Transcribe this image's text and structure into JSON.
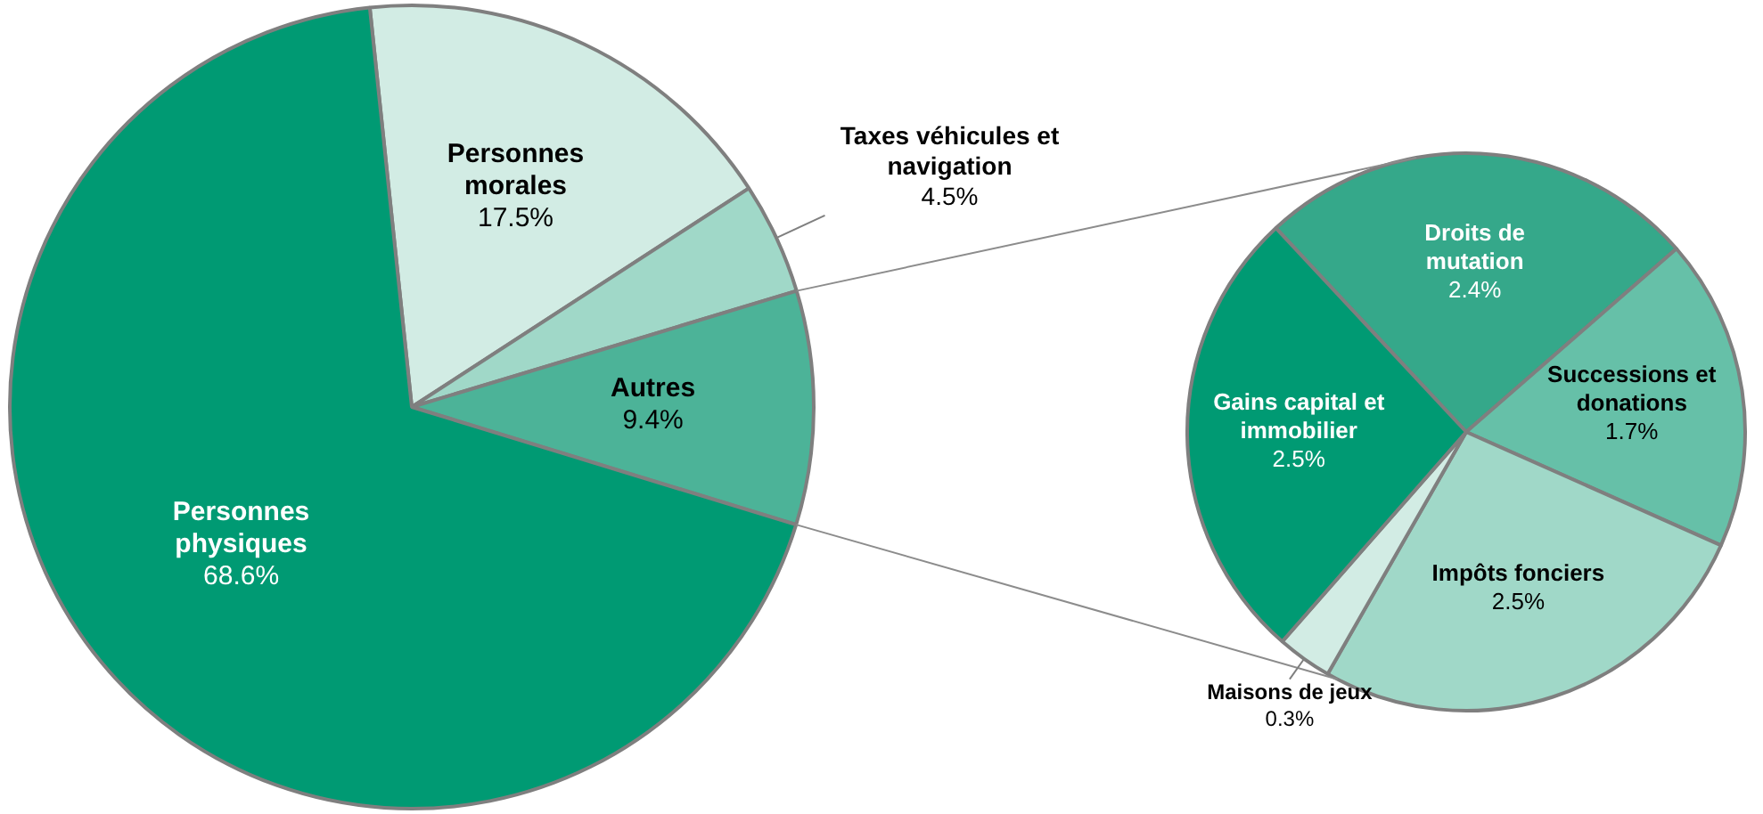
{
  "chart_data": [
    {
      "type": "pie",
      "categories": [
        "Personnes morales",
        "Taxes véhicules et navigation",
        "Autres",
        "Personnes physiques"
      ],
      "values": [
        17.5,
        4.5,
        9.4,
        68.6
      ],
      "colors": [
        "#d2ece4",
        "#a0d8c8",
        "#4cb398",
        "#009a73"
      ],
      "value_labels": [
        "17.5%",
        "4.5%",
        "9.4%",
        "68.6%"
      ],
      "legend": false
    },
    {
      "type": "pie",
      "categories": [
        "Droits de mutation",
        "Successions et donations",
        "Impôts fonciers",
        "Maisons de jeux",
        "Gains capital et immobilier"
      ],
      "values": [
        2.4,
        1.7,
        2.5,
        0.3,
        2.5
      ],
      "colors": [
        "#35a88a",
        "#66c0a8",
        "#a0d8c8",
        "#d2ece4",
        "#009a73"
      ],
      "value_labels": [
        "2.4%",
        "1.7%",
        "2.5%",
        "0.3%",
        "2.5%"
      ],
      "legend": false
    }
  ]
}
